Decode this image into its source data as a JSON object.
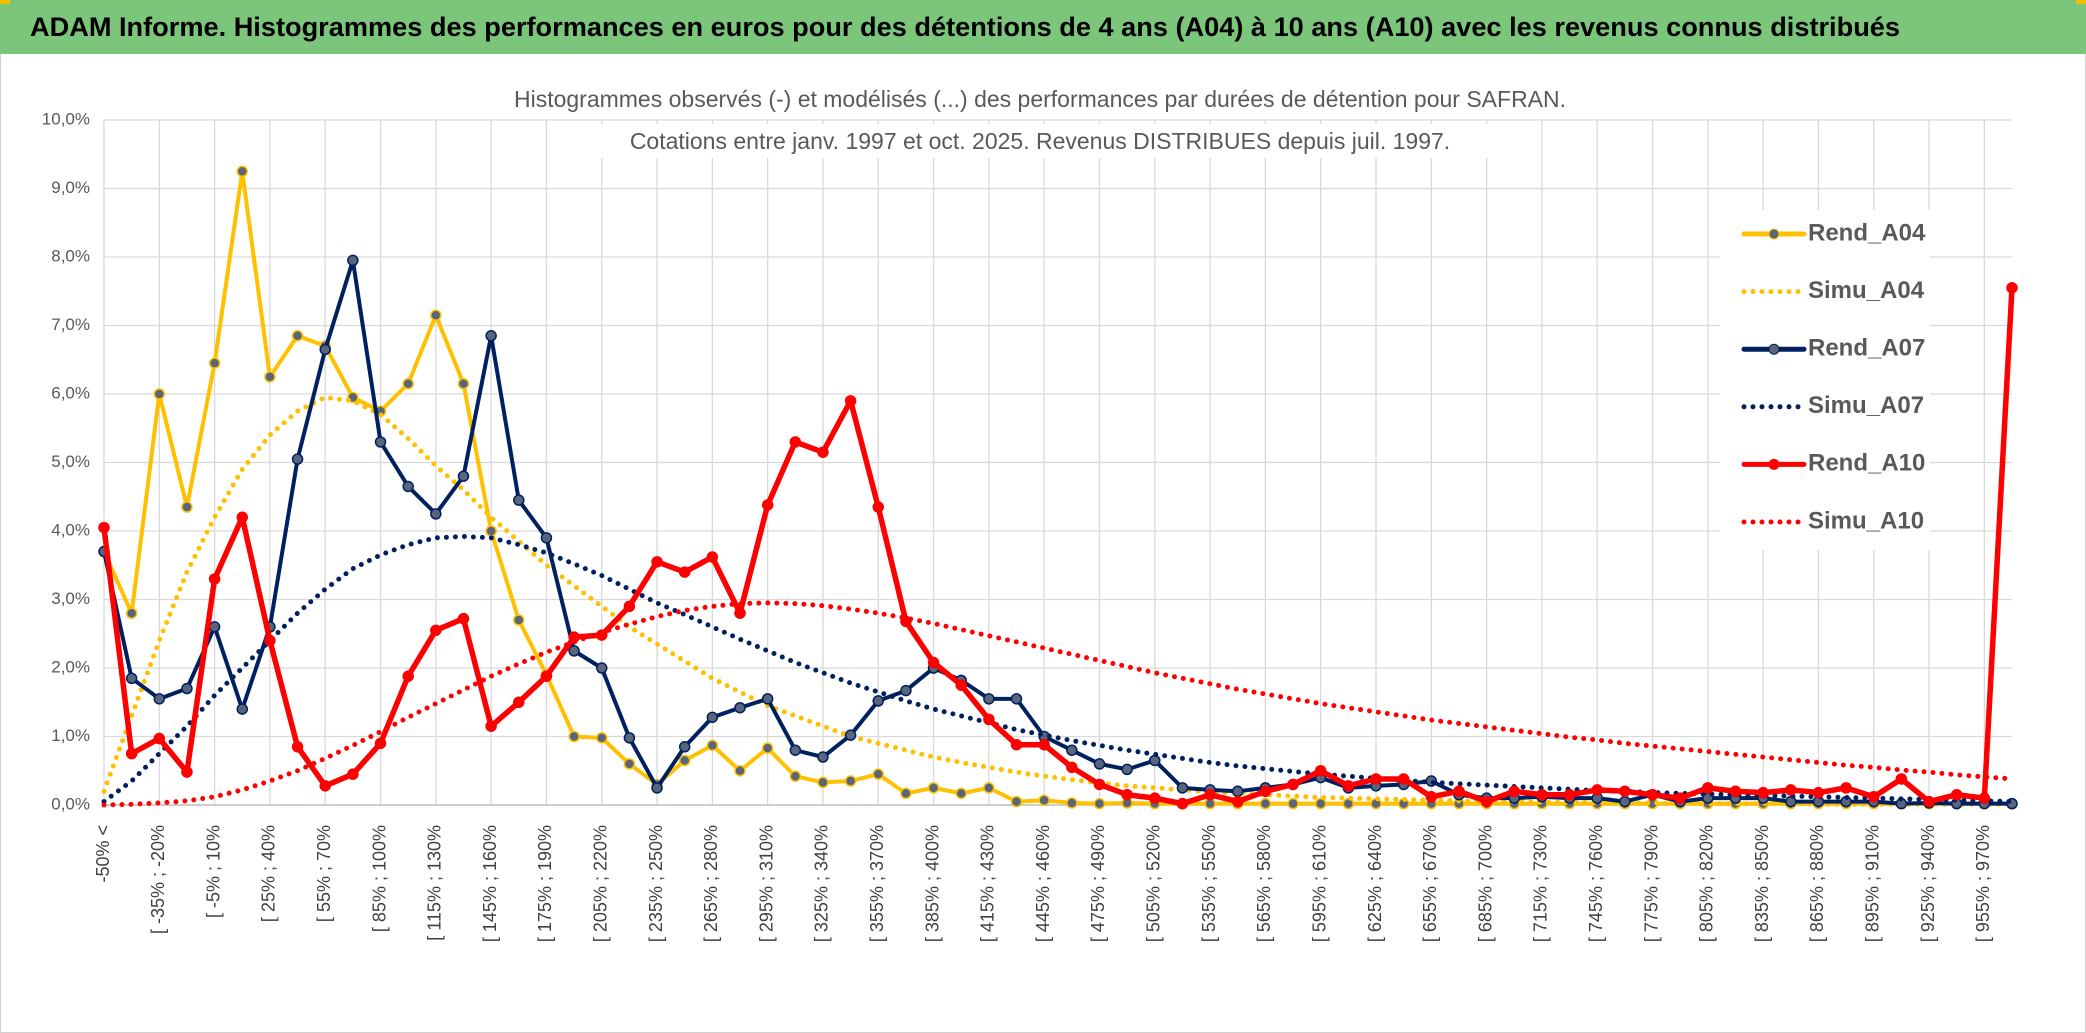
{
  "header": {
    "title": "ADAM Informe. Histogrammes des performances en euros pour des détentions de 4 ans (A04) à 10 ans (A10) avec les revenus connus distribués"
  },
  "chart_data": {
    "type": "line",
    "title": "Histogrammes observés (-) et modélisés (...) des performances par durées de détention pour SAFRAN.",
    "subtitle": "Cotations entre janv. 1997 et oct. 2025. Revenus DISTRIBUES depuis juil. 1997.",
    "categories": [
      "-50% <",
      null,
      "[ -35% ; -20%",
      null,
      "[ -5% ; 10%",
      null,
      "[ 25% ; 40%",
      null,
      "[ 55% ; 70%",
      null,
      "[ 85% ; 100%",
      null,
      "[ 115% ; 130%",
      null,
      "[ 145% ; 160%",
      null,
      "[ 175% ; 190%",
      null,
      "[ 205% ; 220%",
      null,
      "[ 235% ; 250%",
      null,
      "[ 265% ; 280%",
      null,
      "[ 295% ; 310%",
      null,
      "[ 325% ; 340%",
      null,
      "[ 355% ; 370%",
      null,
      "[ 385% ; 400%",
      null,
      "[ 415% ; 430%",
      null,
      "[ 445% ; 460%",
      null,
      "[ 475% ; 490%",
      null,
      "[ 505% ; 520%",
      null,
      "[ 535% ; 550%",
      null,
      "[ 565% ; 580%",
      null,
      "[ 595% ; 610%",
      null,
      "[ 625% ; 640%",
      null,
      "[ 655% ; 670%",
      null,
      "[ 685% ; 700%",
      null,
      "[ 715% ; 730%",
      null,
      "[ 745% ; 760%",
      null,
      "[ 775% ; 790%",
      null,
      "[ 805% ; 820%",
      null,
      "[ 835% ; 850%",
      null,
      "[ 865% ; 880%",
      null,
      "[ 895% ; 910%",
      null,
      "[ 925% ; 940%",
      null,
      "[ 955% ; 970%",
      null
    ],
    "series": [
      {
        "name": "Rend_A04",
        "color": "#ffc000",
        "style": "solid",
        "markers": true,
        "values": [
          3.7,
          2.8,
          6.0,
          4.35,
          6.45,
          9.25,
          6.25,
          6.85,
          6.7,
          5.95,
          5.75,
          6.15,
          7.15,
          6.15,
          4.0,
          2.7,
          1.9,
          1.0,
          0.98,
          0.6,
          0.3,
          0.65,
          0.87,
          0.5,
          0.83,
          0.42,
          0.33,
          0.35,
          0.45,
          0.17,
          0.25,
          0.17,
          0.25,
          0.05,
          0.07,
          0.03,
          0.02,
          0.03,
          0.02,
          0.02,
          0.02,
          0.02,
          0.02,
          0.02,
          0.02,
          0.02,
          0.02,
          0.02,
          0.02,
          0.02,
          0.02,
          0.02,
          0.02,
          0.02,
          0.02,
          0.02,
          0.02,
          0.02,
          0.02,
          0.02,
          0.02,
          0.02,
          0.02,
          0.02,
          0.02,
          0.02,
          0.02,
          0.02,
          0.02,
          0.02
        ]
      },
      {
        "name": "Simu_A04",
        "color": "#ffc000",
        "style": "dotted",
        "markers": false,
        "values": [
          0.2,
          1.3,
          2.4,
          3.4,
          4.2,
          4.9,
          5.4,
          5.75,
          5.95,
          5.9,
          5.7,
          5.35,
          4.95,
          4.6,
          4.2,
          3.85,
          3.5,
          3.2,
          2.9,
          2.6,
          2.35,
          2.1,
          1.85,
          1.65,
          1.45,
          1.3,
          1.15,
          1.0,
          0.9,
          0.8,
          0.7,
          0.62,
          0.55,
          0.48,
          0.42,
          0.37,
          0.32,
          0.28,
          0.25,
          0.22,
          0.19,
          0.17,
          0.15,
          0.13,
          0.11,
          0.1,
          0.09,
          0.08,
          0.07,
          0.06,
          0.05,
          0.05,
          0.04,
          0.04,
          0.03,
          0.03,
          0.03,
          0.02,
          0.02,
          0.02,
          0.02,
          0.02,
          0.01,
          0.01,
          0.01,
          0.01,
          0.01,
          0.01,
          0.01,
          0.01
        ]
      },
      {
        "name": "Rend_A07",
        "color": "#002060",
        "style": "solid",
        "markers": true,
        "values": [
          3.7,
          1.85,
          1.55,
          1.7,
          2.6,
          1.4,
          2.6,
          5.05,
          6.65,
          7.95,
          5.3,
          4.65,
          4.25,
          4.8,
          6.85,
          4.45,
          3.9,
          2.25,
          2.0,
          0.98,
          0.25,
          0.85,
          1.28,
          1.42,
          1.55,
          0.8,
          0.7,
          1.02,
          1.52,
          1.67,
          2.0,
          1.82,
          1.55,
          1.55,
          1.0,
          0.8,
          0.6,
          0.52,
          0.65,
          0.25,
          0.22,
          0.2,
          0.25,
          0.3,
          0.4,
          0.25,
          0.28,
          0.3,
          0.35,
          0.15,
          0.1,
          0.1,
          0.12,
          0.1,
          0.1,
          0.05,
          0.15,
          0.05,
          0.1,
          0.1,
          0.1,
          0.05,
          0.05,
          0.05,
          0.05,
          0.02,
          0.03,
          0.02,
          0.02,
          0.02
        ]
      },
      {
        "name": "Simu_A07",
        "color": "#002060",
        "style": "dotted",
        "markers": false,
        "values": [
          0.05,
          0.35,
          0.75,
          1.15,
          1.6,
          2.0,
          2.4,
          2.8,
          3.15,
          3.45,
          3.65,
          3.8,
          3.9,
          3.92,
          3.9,
          3.8,
          3.68,
          3.52,
          3.35,
          3.15,
          2.95,
          2.78,
          2.6,
          2.42,
          2.25,
          2.08,
          1.93,
          1.78,
          1.65,
          1.52,
          1.4,
          1.3,
          1.2,
          1.1,
          1.02,
          0.94,
          0.87,
          0.8,
          0.74,
          0.68,
          0.62,
          0.57,
          0.53,
          0.49,
          0.45,
          0.42,
          0.39,
          0.36,
          0.33,
          0.31,
          0.29,
          0.27,
          0.25,
          0.23,
          0.21,
          0.2,
          0.18,
          0.17,
          0.16,
          0.15,
          0.14,
          0.13,
          0.12,
          0.11,
          0.1,
          0.09,
          0.08,
          0.07,
          0.06,
          0.05
        ]
      },
      {
        "name": "Rend_A10",
        "color": "#ff0000",
        "style": "solid",
        "markers": true,
        "values": [
          4.05,
          0.75,
          0.97,
          0.48,
          3.3,
          4.2,
          2.4,
          0.85,
          0.28,
          0.45,
          0.9,
          1.88,
          2.55,
          2.72,
          1.15,
          1.5,
          1.88,
          2.45,
          2.48,
          2.9,
          3.55,
          3.4,
          3.62,
          2.8,
          4.38,
          5.3,
          5.15,
          5.9,
          4.35,
          2.68,
          2.08,
          1.75,
          1.25,
          0.88,
          0.88,
          0.55,
          0.3,
          0.15,
          0.1,
          0.02,
          0.15,
          0.05,
          0.2,
          0.3,
          0.5,
          0.28,
          0.38,
          0.38,
          0.12,
          0.2,
          0.05,
          0.2,
          0.15,
          0.15,
          0.22,
          0.2,
          0.15,
          0.1,
          0.25,
          0.2,
          0.18,
          0.22,
          0.18,
          0.25,
          0.12,
          0.38,
          0.05,
          0.15,
          0.1,
          7.55
        ]
      },
      {
        "name": "Simu_A10",
        "color": "#ff0000",
        "style": "dotted",
        "markers": false,
        "values": [
          0.0,
          0.01,
          0.03,
          0.06,
          0.12,
          0.22,
          0.35,
          0.5,
          0.68,
          0.87,
          1.07,
          1.28,
          1.48,
          1.68,
          1.88,
          2.06,
          2.23,
          2.38,
          2.52,
          2.64,
          2.75,
          2.84,
          2.9,
          2.94,
          2.95,
          2.94,
          2.91,
          2.86,
          2.8,
          2.73,
          2.65,
          2.56,
          2.47,
          2.38,
          2.29,
          2.2,
          2.11,
          2.02,
          1.93,
          1.85,
          1.77,
          1.69,
          1.62,
          1.55,
          1.48,
          1.42,
          1.36,
          1.3,
          1.24,
          1.19,
          1.14,
          1.09,
          1.04,
          0.99,
          0.95,
          0.9,
          0.86,
          0.82,
          0.78,
          0.74,
          0.7,
          0.66,
          0.62,
          0.58,
          0.55,
          0.51,
          0.48,
          0.44,
          0.41,
          0.38
        ]
      }
    ],
    "ylim": [
      0,
      10
    ],
    "yticks": [
      {
        "value": 0,
        "label": "0,0%"
      },
      {
        "value": 1,
        "label": "1,0%"
      },
      {
        "value": 2,
        "label": "2,0%"
      },
      {
        "value": 3,
        "label": "3,0%"
      },
      {
        "value": 4,
        "label": "4,0%"
      },
      {
        "value": 5,
        "label": "5,0%"
      },
      {
        "value": 6,
        "label": "6,0%"
      },
      {
        "value": 7,
        "label": "7,0%"
      },
      {
        "value": 8,
        "label": "8,0%"
      },
      {
        "value": 9,
        "label": "9,0%"
      },
      {
        "value": 10,
        "label": "10,0%"
      }
    ],
    "grid": true,
    "legend": "right"
  }
}
